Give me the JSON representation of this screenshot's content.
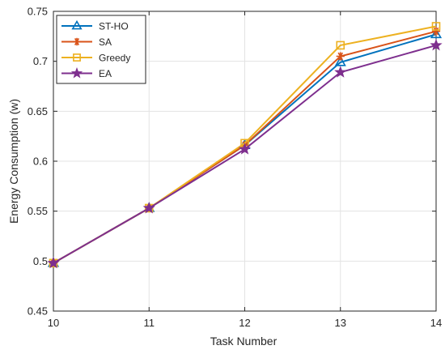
{
  "chart_data": {
    "type": "line",
    "xlabel": "Task Number",
    "ylabel": "Energy Consumption (w)",
    "x": [
      10,
      11,
      12,
      13,
      14
    ],
    "xlim": [
      10,
      14
    ],
    "ylim": [
      0.45,
      0.75
    ],
    "xticks": [
      "10",
      "11",
      "12",
      "13",
      "14"
    ],
    "yticks": [
      "0.45",
      "0.5",
      "0.55",
      "0.6",
      "0.65",
      "0.7",
      "0.75"
    ],
    "grid": true,
    "legend_position": "top-left",
    "series": [
      {
        "name": "ST-HO",
        "color": "#0072BD",
        "marker": "triangle",
        "values": [
          0.498,
          0.553,
          0.616,
          0.699,
          0.727
        ]
      },
      {
        "name": "SA",
        "color": "#D95319",
        "marker": "asterisk",
        "values": [
          0.498,
          0.553,
          0.616,
          0.705,
          0.73
        ]
      },
      {
        "name": "Greedy",
        "color": "#EDB120",
        "marker": "square",
        "values": [
          0.498,
          0.553,
          0.618,
          0.716,
          0.735
        ]
      },
      {
        "name": "EA",
        "color": "#7E2F8E",
        "marker": "star",
        "values": [
          0.498,
          0.553,
          0.612,
          0.689,
          0.716
        ]
      }
    ]
  }
}
